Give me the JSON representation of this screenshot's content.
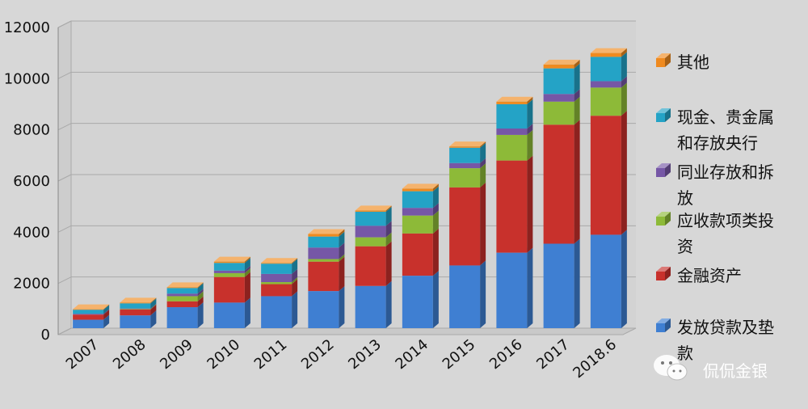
{
  "chart_data": {
    "type": "bar",
    "stacked": true,
    "three_d": true,
    "categories": [
      "2007",
      "2008",
      "2009",
      "2010",
      "2011",
      "2012",
      "2013",
      "2014",
      "2015",
      "2016",
      "2017",
      "2018.6"
    ],
    "ylim": [
      0,
      12000
    ],
    "y_ticks": [
      "0",
      "2000",
      "4000",
      "6000",
      "8000",
      "10000",
      "12000"
    ],
    "grid": true,
    "legend_position": "right",
    "series": [
      {
        "name": "发放贷款及垫款",
        "color": "#3f7fd2",
        "values": [
          330,
          500,
          820,
          1000,
          1250,
          1450,
          1650,
          2050,
          2450,
          2950,
          3300,
          3650
        ]
      },
      {
        "name": "金融资产",
        "color": "#c8312c",
        "values": [
          200,
          230,
          230,
          1000,
          470,
          1150,
          1550,
          1650,
          3050,
          3600,
          4650,
          4650
        ]
      },
      {
        "name": "应收款项类投资",
        "color": "#8dba38",
        "values": [
          0,
          20,
          200,
          150,
          80,
          100,
          350,
          700,
          750,
          1000,
          900,
          1100
        ]
      },
      {
        "name": "同业存放和拆放",
        "color": "#7657a6",
        "values": [
          30,
          20,
          100,
          100,
          320,
          450,
          450,
          300,
          200,
          250,
          300,
          250
        ]
      },
      {
        "name": "现金、贵金属和存放央行",
        "color": "#24a3c6",
        "values": [
          160,
          200,
          220,
          300,
          400,
          430,
          550,
          650,
          600,
          950,
          1000,
          950
        ]
      },
      {
        "name": "其他",
        "color": "#ef8a1f",
        "values": [
          20,
          30,
          30,
          50,
          30,
          100,
          50,
          100,
          50,
          100,
          150,
          150
        ]
      }
    ],
    "legend_order": [
      5,
      4,
      3,
      2,
      1,
      0
    ],
    "legend_lines": [
      [
        "其他"
      ],
      [
        "现金、贵金属",
        "和存放央行"
      ],
      [
        "同业存放和拆",
        "放"
      ],
      [
        "应收款项类投",
        "资"
      ],
      [
        "金融资产"
      ],
      [
        "发放贷款及垫",
        "款"
      ]
    ]
  },
  "watermark": {
    "text": "侃侃金银",
    "icon": "wechat-icon"
  }
}
